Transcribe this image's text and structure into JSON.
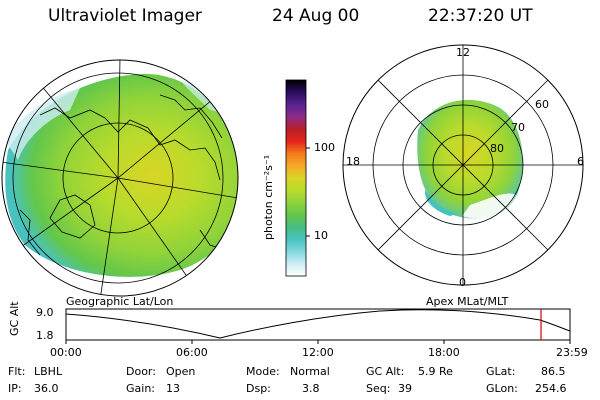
{
  "header": {
    "instrument": "Ultraviolet Imager",
    "date": "24 Aug 00",
    "time": "22:37:20 UT"
  },
  "colorbar": {
    "unit_label": "photon cm⁻²s⁻¹",
    "ticks": [
      {
        "label": "100",
        "value": 100
      },
      {
        "label": "10",
        "value": 10
      }
    ],
    "colors": [
      "#000000",
      "#2b0b5e",
      "#5a2391",
      "#8b2c8a",
      "#b81e2a",
      "#e5231c",
      "#f47a1a",
      "#f7a829",
      "#d9d525",
      "#b8db2c",
      "#8fd33a",
      "#63c74a",
      "#47bd7f",
      "#49c2bf",
      "#7fd8e0",
      "#cfeef2",
      "#ffffff"
    ]
  },
  "left_panel": {
    "label": "Geographic Lat/Lon"
  },
  "right_panel": {
    "label": "Apex MLat/MLT",
    "mlt_labels": [
      "12",
      "18",
      "6",
      "0"
    ],
    "lat_labels": [
      "60",
      "70",
      "80"
    ]
  },
  "timeline": {
    "ylabel": "GC Alt",
    "y_ticks": [
      "9.0",
      "1.8"
    ],
    "x_ticks": [
      "00:00",
      "06:00",
      "12:00",
      "18:00",
      "23:59"
    ],
    "current_marker_hours": 22.62
  },
  "info": {
    "flt_label": "Flt:",
    "flt_value": "LBHL",
    "ip_label": "IP:",
    "ip_value": "36.0",
    "door_label": "Door:",
    "door_value": "Open",
    "gain_label": "Gain:",
    "gain_value": "13",
    "mode_label": "Mode:",
    "mode_value": "Normal",
    "dsp_label": "Dsp:",
    "dsp_value": "3.8",
    "gcalt_label": "GC Alt:",
    "gcalt_value": "5.9 Re",
    "seq_label": "Seq:",
    "seq_value": "39",
    "glat_label": "GLat:",
    "glat_value": "86.5",
    "glon_label": "GLon:",
    "glon_value": "254.6"
  }
}
